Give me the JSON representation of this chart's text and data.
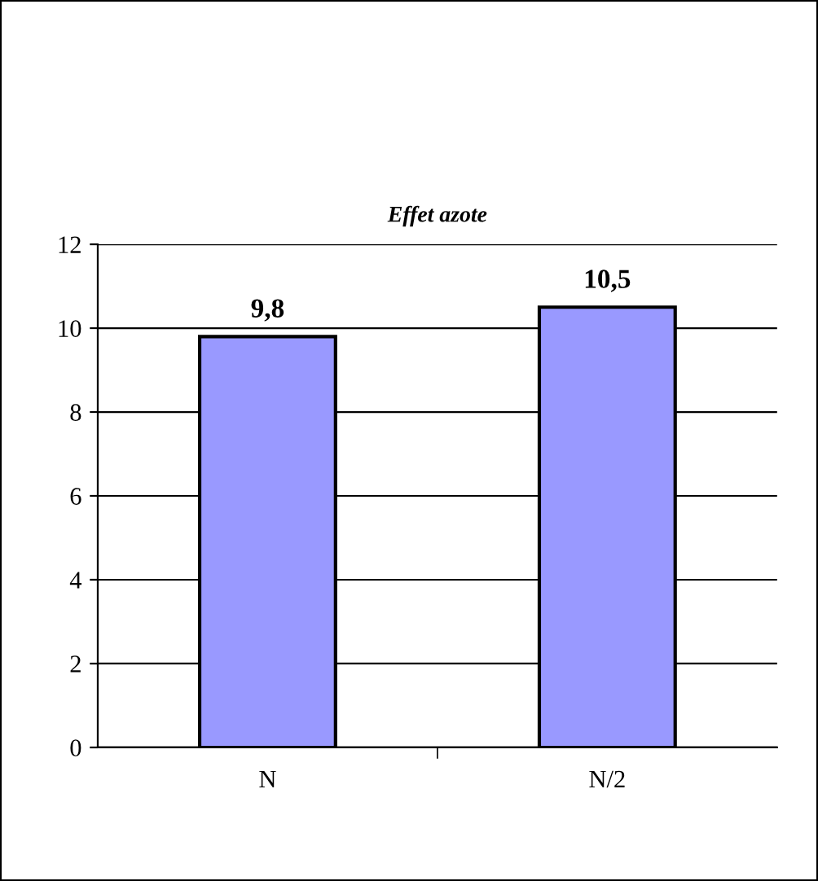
{
  "chart_data": {
    "type": "bar",
    "title": "Effet azote",
    "categories": [
      "N",
      "N/2"
    ],
    "values": [
      9.8,
      10.5
    ],
    "color": "#9999ff",
    "value_labels": [
      "9,8",
      "10,5"
    ],
    "ylim": [
      0,
      12
    ],
    "yticks": [
      0,
      2,
      4,
      6,
      8,
      10,
      12
    ],
    "grid": "y",
    "legend": false
  }
}
